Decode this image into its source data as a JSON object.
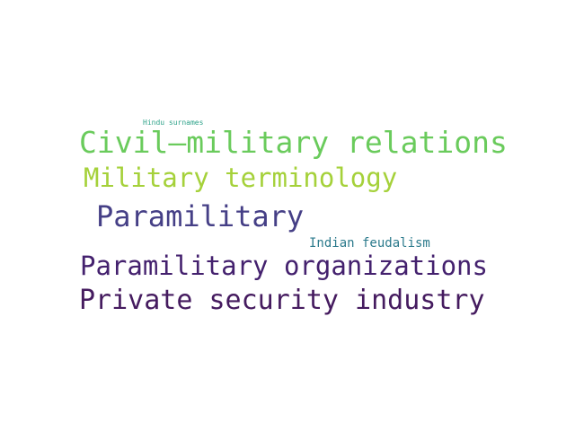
{
  "words": [
    {
      "text": "Hindu surnames",
      "color": "#2fa38a"
    },
    {
      "text": "Civil–military relations",
      "color": "#6acb5c"
    },
    {
      "text": "Military terminology",
      "color": "#a5d13a"
    },
    {
      "text": "Paramilitary",
      "color": "#453f86"
    },
    {
      "text": "Indian feudalism",
      "color": "#2b7a8c"
    },
    {
      "text": "Paramilitary organizations",
      "color": "#44216e"
    },
    {
      "text": "Private security industry",
      "color": "#451b5f"
    }
  ]
}
